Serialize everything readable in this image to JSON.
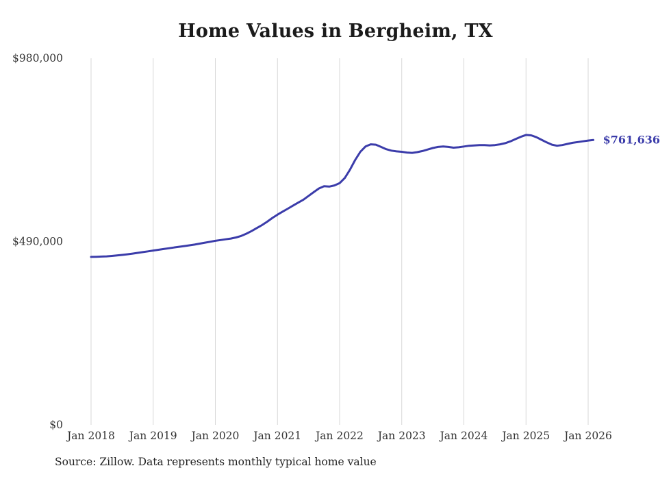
{
  "title": "Home Values in Bergheim, TX",
  "source_note": "Source: Zillow. Data represents monthly typical home value",
  "end_label": "$761,636",
  "colors": {
    "line": "#3b3caa",
    "grid": "#d7d7d7",
    "tick_text": "#333333",
    "title_text": "#1b1b1b",
    "source_text": "#222222",
    "background": "#ffffff"
  },
  "chart_data": {
    "type": "line",
    "title": "Home Values in Bergheim, TX",
    "xlabel": "",
    "ylabel": "",
    "ylim": [
      0,
      980000
    ],
    "grid": "vertical-only",
    "legend_position": "none",
    "x_ticks": [
      "Jan 2018",
      "Jan 2019",
      "Jan 2020",
      "Jan 2021",
      "Jan 2022",
      "Jan 2023",
      "Jan 2024",
      "Jan 2025",
      "Jan 2026"
    ],
    "y_ticks": [
      {
        "value": 0,
        "label": "$0"
      },
      {
        "value": 490000,
        "label": "$490,000"
      },
      {
        "value": 980000,
        "label": "$980,000"
      }
    ],
    "x_start_month": "2018-01",
    "x_interval": "monthly",
    "final_value": 761636,
    "final_value_label": "$761,636",
    "series": [
      {
        "name": "Typical home value",
        "values": [
          449000,
          449300,
          449800,
          450500,
          451500,
          452800,
          454300,
          456000,
          457800,
          459700,
          461700,
          463800,
          466000,
          468000,
          470000,
          472000,
          474000,
          476000,
          478000,
          480000,
          482000,
          484500,
          487000,
          489500,
          492000,
          494000,
          496000,
          498000,
          501000,
          505000,
          511000,
          518000,
          526000,
          534000,
          543000,
          553000,
          562000,
          570000,
          578000,
          586000,
          594000,
          602000,
          612000,
          622000,
          632000,
          638000,
          637000,
          640000,
          646000,
          660000,
          682000,
          708000,
          730000,
          744000,
          750000,
          749000,
          743000,
          737000,
          733000,
          731000,
          730000,
          728000,
          727000,
          729000,
          732000,
          736000,
          740000,
          743000,
          744000,
          743000,
          741000,
          742000,
          744000,
          746000,
          747000,
          748000,
          748000,
          747000,
          748000,
          750000,
          753000,
          758000,
          764000,
          770000,
          775000,
          774000,
          769000,
          762000,
          755000,
          749000,
          746000,
          748000,
          751000,
          754000,
          756000,
          758000,
          760000,
          761636
        ]
      }
    ]
  }
}
